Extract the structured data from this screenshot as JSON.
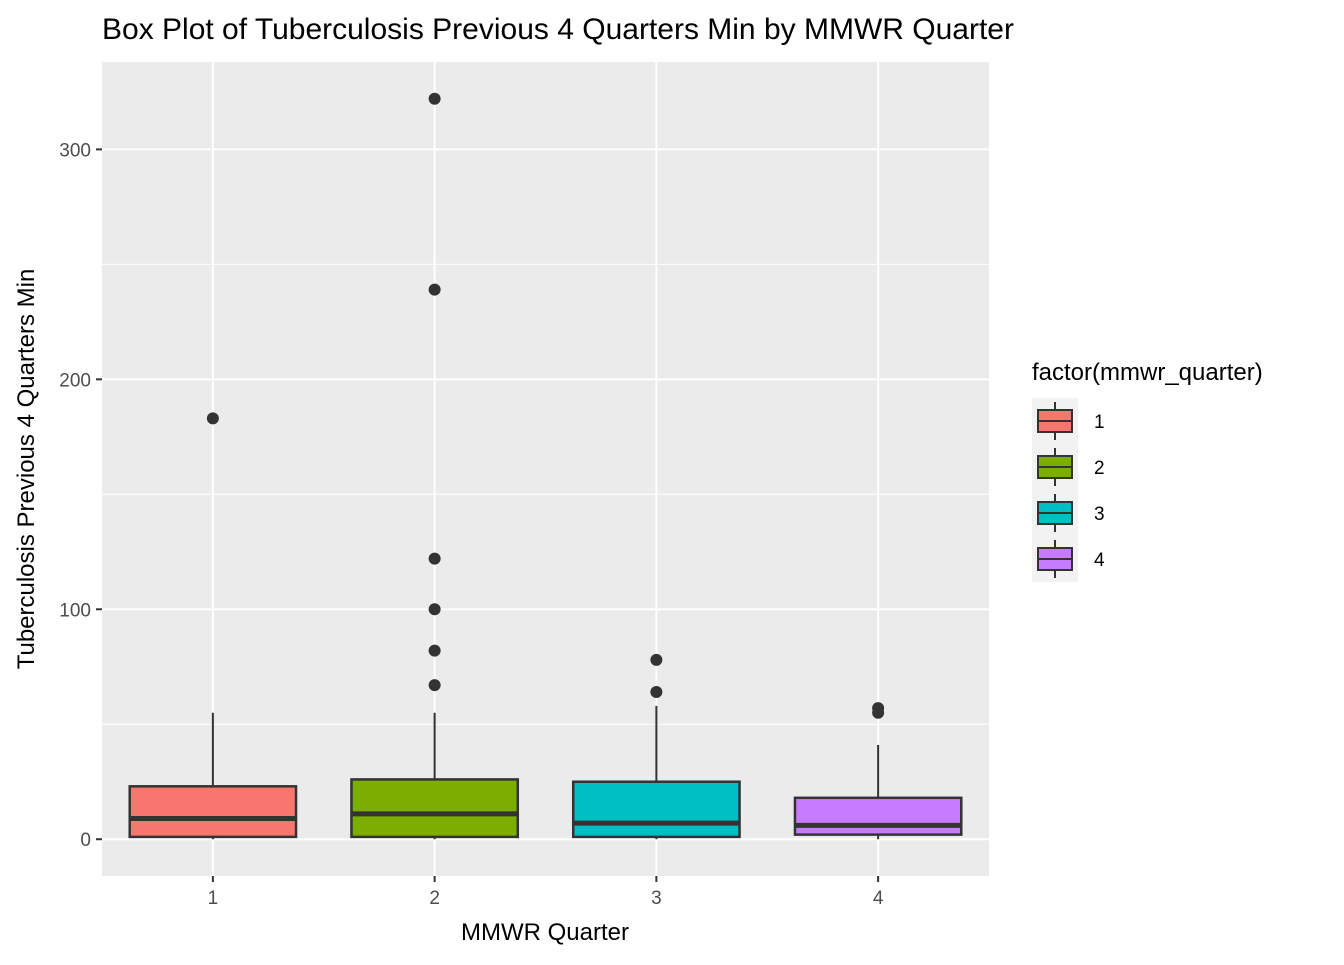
{
  "chart_data": {
    "type": "box",
    "title": "Box Plot of Tuberculosis Previous 4 Quarters Min by MMWR Quarter",
    "xlabel": "MMWR Quarter",
    "ylabel": "Tuberculosis Previous 4 Quarters Min",
    "categories": [
      "1",
      "2",
      "3",
      "4"
    ],
    "ylim": [
      -16,
      338
    ],
    "y_ticks": [
      0,
      100,
      200,
      300
    ],
    "grid": true,
    "legend": {
      "title": "factor(mmwr_quarter)",
      "position": "right",
      "entries": [
        "1",
        "2",
        "3",
        "4"
      ]
    },
    "colors": [
      "#F8766D",
      "#7CAE00",
      "#00BFC4",
      "#C77CFF"
    ],
    "boxes": [
      {
        "category": "1",
        "min": 0,
        "q1": 1,
        "median": 9,
        "q3": 23,
        "max": 55,
        "outliers": [
          183
        ]
      },
      {
        "category": "2",
        "min": 0,
        "q1": 1,
        "median": 11,
        "q3": 26,
        "max": 55,
        "outliers": [
          67,
          82,
          100,
          122,
          239,
          322
        ]
      },
      {
        "category": "3",
        "min": 0,
        "q1": 1,
        "median": 7,
        "q3": 25,
        "max": 58,
        "outliers": [
          64,
          78
        ]
      },
      {
        "category": "4",
        "min": 0,
        "q1": 2,
        "median": 6,
        "q3": 18,
        "max": 41,
        "outliers": [
          55,
          57
        ]
      }
    ]
  }
}
